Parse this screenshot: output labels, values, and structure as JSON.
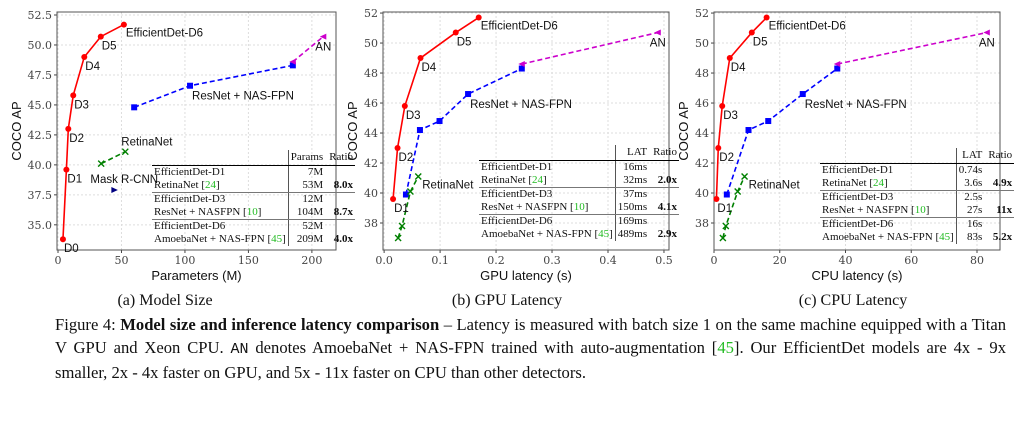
{
  "colors": {
    "efficientdet": "#ff0000",
    "resnet_nasfpn": "#0000ff",
    "amoebanet": "#cc00cc",
    "retinanet": "#008000",
    "mask_rcnn": "#000080",
    "citation": "#22bb22"
  },
  "chart_data": [
    {
      "type": "line",
      "xlabel": "Parameters (M)",
      "ylabel": "COCO AP",
      "xlim": [
        -0.8,
        219
      ],
      "ylim": [
        32.9,
        52.75
      ],
      "xticks": [
        0,
        50,
        100,
        150,
        200
      ],
      "xtick_labels": [
        "0",
        "50",
        "100",
        "150",
        "200"
      ],
      "yticks": [
        35,
        37.5,
        40,
        42.5,
        45,
        47.5,
        50,
        52.5
      ],
      "ytick_labels": [
        "35.0",
        "37.5",
        "40.0",
        "42.5",
        "45.0",
        "47.5",
        "50.0",
        "52.5"
      ],
      "grid": true,
      "series": [
        {
          "key": "efficientdet",
          "style": "solid",
          "marker": "circle",
          "points": [
            [
              3.9,
              33.8
            ],
            [
              6.6,
              39.6
            ],
            [
              8.1,
              43.0
            ],
            [
              12,
              45.8
            ],
            [
              20.7,
              49.0
            ],
            [
              33.7,
              50.7
            ],
            [
              51.9,
              51.7
            ]
          ]
        },
        {
          "key": "resnet_nasfpn",
          "style": "dashed",
          "marker": "square",
          "points": [
            [
              60,
              44.8
            ],
            [
              104,
              46.6
            ],
            [
              185,
              48.3
            ]
          ]
        },
        {
          "key": "amoebanet",
          "style": "dashed",
          "marker": "triangle-left",
          "points": [
            [
              185,
              48.6
            ],
            [
              209,
              50.7
            ]
          ]
        },
        {
          "key": "retinanet",
          "style": "dashed",
          "marker": "x",
          "points": [
            [
              34,
              40.1
            ],
            [
              53,
              41.1
            ]
          ]
        },
        {
          "key": "mask_rcnn",
          "style": "none",
          "marker": "triangle-right",
          "points": [
            [
              44.4,
              37.9
            ]
          ]
        }
      ],
      "annotations": [
        {
          "text": "D0",
          "x": 3.9,
          "y": 33.8
        },
        {
          "text": "D1",
          "x": 6.6,
          "y": 39.6
        },
        {
          "text": "D2",
          "x": 8.1,
          "y": 43.0
        },
        {
          "text": "D3",
          "x": 12,
          "y": 45.8
        },
        {
          "text": "D4",
          "x": 20.7,
          "y": 49.0
        },
        {
          "text": "D5",
          "x": 33.7,
          "y": 50.7
        },
        {
          "text": "EfficientDet-D6",
          "x": 51.9,
          "y": 51.7
        },
        {
          "text": "ResNet + NAS-FPN",
          "x": 104,
          "y": 46.6
        },
        {
          "text": "AN",
          "x": 209,
          "y": 50.7
        },
        {
          "text": "RetinaNet",
          "x": 53,
          "y": 41.1
        },
        {
          "text": "Mask R-CNN",
          "x": 44.4,
          "y": 37.9
        }
      ],
      "table": {
        "headers": [
          "",
          "Params",
          "Ratio"
        ],
        "rows": [
          [
            {
              "name": "EfficientDet-D1",
              "ref": ""
            },
            "7M",
            ""
          ],
          [
            {
              "name": "RetinaNet",
              "ref": "24"
            },
            "53M",
            "8.0x"
          ],
          [
            {
              "name": "EfficientDet-D3",
              "ref": ""
            },
            "12M",
            ""
          ],
          [
            {
              "name": "ResNet + NASFPN",
              "ref": "10"
            },
            "104M",
            "8.7x"
          ],
          [
            {
              "name": "EfficientDet-D6",
              "ref": ""
            },
            "52M",
            ""
          ],
          [
            {
              "name": "AmoebaNet + NAS-FPN",
              "ref": "45"
            },
            "209M",
            "4.0x"
          ]
        ]
      }
    },
    {
      "type": "line",
      "xlabel": "GPU latency (s)",
      "ylabel": "COCO AP",
      "xlim": [
        -0.002,
        0.509
      ],
      "ylim": [
        36.2,
        52.07
      ],
      "xticks": [
        0,
        0.1,
        0.2,
        0.3,
        0.4,
        0.5
      ],
      "xtick_labels": [
        "0.0",
        "0.1",
        "0.2",
        "0.3",
        "0.4",
        "0.5"
      ],
      "yticks": [
        38,
        40,
        42,
        44,
        46,
        48,
        50,
        52
      ],
      "ytick_labels": [
        "38",
        "40",
        "42",
        "44",
        "46",
        "48",
        "50",
        "52"
      ],
      "grid": true,
      "series": [
        {
          "key": "efficientdet",
          "style": "solid",
          "marker": "circle",
          "points": [
            [
              0.016,
              39.6
            ],
            [
              0.024,
              43.0
            ],
            [
              0.037,
              45.8
            ],
            [
              0.065,
              49.0
            ],
            [
              0.128,
              50.7
            ],
            [
              0.169,
              51.7
            ]
          ]
        },
        {
          "key": "resnet_nasfpn",
          "style": "dashed",
          "marker": "square",
          "points": [
            [
              0.039,
              39.9
            ],
            [
              0.064,
              44.2
            ],
            [
              0.099,
              44.8
            ],
            [
              0.15,
              46.6
            ],
            [
              0.246,
              48.3
            ]
          ]
        },
        {
          "key": "amoebanet",
          "style": "dashed",
          "marker": "triangle-left",
          "points": [
            [
              0.246,
              48.6
            ],
            [
              0.489,
              50.7
            ]
          ]
        },
        {
          "key": "retinanet",
          "style": "dashed",
          "marker": "x",
          "points": [
            [
              0.025,
              37.0
            ],
            [
              0.032,
              37.8
            ],
            [
              0.047,
              40.1
            ],
            [
              0.061,
              41.1
            ]
          ]
        }
      ],
      "annotations": [
        {
          "text": "D1",
          "x": 0.016,
          "y": 39.6
        },
        {
          "text": "D2",
          "x": 0.024,
          "y": 43.0
        },
        {
          "text": "D3",
          "x": 0.037,
          "y": 45.8
        },
        {
          "text": "D4",
          "x": 0.065,
          "y": 49.0
        },
        {
          "text": "D5",
          "x": 0.128,
          "y": 50.7
        },
        {
          "text": "EfficientDet-D6",
          "x": 0.169,
          "y": 51.7
        },
        {
          "text": "ResNet + NAS-FPN",
          "x": 0.15,
          "y": 46.6
        },
        {
          "text": "AN",
          "x": 0.489,
          "y": 50.7
        },
        {
          "text": "RetinaNet",
          "x": 0.061,
          "y": 41.1
        }
      ],
      "table": {
        "headers": [
          "",
          "LAT",
          "Ratio"
        ],
        "rows": [
          [
            {
              "name": "EfficientDet-D1",
              "ref": ""
            },
            "16ms",
            ""
          ],
          [
            {
              "name": "RetinaNet",
              "ref": "24"
            },
            "32ms",
            "2.0x"
          ],
          [
            {
              "name": "EfficientDet-D3",
              "ref": ""
            },
            "37ms",
            ""
          ],
          [
            {
              "name": "ResNet + NASFPN",
              "ref": "10"
            },
            "150ms",
            "4.1x"
          ],
          [
            {
              "name": "EfficientDet-D6",
              "ref": ""
            },
            "169ms",
            ""
          ],
          [
            {
              "name": "AmoebaNet + NAS-FPN",
              "ref": "45"
            },
            "489ms",
            "2.9x"
          ]
        ]
      }
    },
    {
      "type": "line",
      "xlabel": "CPU latency (s)",
      "ylabel": "COCO AP",
      "xlim": [
        0,
        87
      ],
      "ylim": [
        36.2,
        52.07
      ],
      "xticks": [
        0,
        20,
        40,
        60,
        80
      ],
      "xtick_labels": [
        "0",
        "20",
        "40",
        "60",
        "80"
      ],
      "yticks": [
        38,
        40,
        42,
        44,
        46,
        48,
        50,
        52
      ],
      "ytick_labels": [
        "38",
        "40",
        "42",
        "44",
        "46",
        "48",
        "50",
        "52"
      ],
      "grid": true,
      "series": [
        {
          "key": "efficientdet",
          "style": "solid",
          "marker": "circle",
          "points": [
            [
              0.74,
              39.6
            ],
            [
              1.3,
              43.0
            ],
            [
              2.5,
              45.8
            ],
            [
              4.8,
              49.0
            ],
            [
              11.5,
              50.7
            ],
            [
              16,
              51.7
            ]
          ]
        },
        {
          "key": "resnet_nasfpn",
          "style": "dashed",
          "marker": "square",
          "points": [
            [
              3.9,
              39.9
            ],
            [
              10.5,
              44.2
            ],
            [
              16.5,
              44.8
            ],
            [
              27,
              46.6
            ],
            [
              37.5,
              48.3
            ]
          ]
        },
        {
          "key": "amoebanet",
          "style": "dashed",
          "marker": "triangle-left",
          "points": [
            [
              37.5,
              48.6
            ],
            [
              83,
              50.7
            ]
          ]
        },
        {
          "key": "retinanet",
          "style": "dashed",
          "marker": "x",
          "points": [
            [
              2.7,
              37.0
            ],
            [
              3.6,
              37.8
            ],
            [
              7.2,
              40.1
            ],
            [
              9.3,
              41.1
            ]
          ]
        }
      ],
      "annotations": [
        {
          "text": "D1",
          "x": 0.74,
          "y": 39.6
        },
        {
          "text": "D2",
          "x": 1.3,
          "y": 43.0
        },
        {
          "text": "D3",
          "x": 2.5,
          "y": 45.8
        },
        {
          "text": "D4",
          "x": 4.8,
          "y": 49.0
        },
        {
          "text": "D5",
          "x": 11.5,
          "y": 50.7
        },
        {
          "text": "EfficientDet-D6",
          "x": 16,
          "y": 51.7
        },
        {
          "text": "ResNet + NAS-FPN",
          "x": 27,
          "y": 46.6
        },
        {
          "text": "AN",
          "x": 83,
          "y": 50.7
        },
        {
          "text": "RetinaNet",
          "x": 9.3,
          "y": 41.1
        }
      ],
      "table": {
        "headers": [
          "",
          "LAT",
          "Ratio"
        ],
        "rows": [
          [
            {
              "name": "EfficientDet-D1",
              "ref": ""
            },
            "0.74s",
            ""
          ],
          [
            {
              "name": "RetinaNet",
              "ref": "24"
            },
            "3.6s",
            "4.9x"
          ],
          [
            {
              "name": "EfficientDet-D3",
              "ref": ""
            },
            "2.5s",
            ""
          ],
          [
            {
              "name": "ResNet + NASFPN",
              "ref": "10"
            },
            "27s",
            "11x"
          ],
          [
            {
              "name": "EfficientDet-D6",
              "ref": ""
            },
            "16s",
            ""
          ],
          [
            {
              "name": "AmoebaNet + NAS-FPN",
              "ref": "45"
            },
            "83s",
            "5.2x"
          ]
        ]
      }
    }
  ],
  "subcaptions": [
    "(a) Model Size",
    "(b) GPU Latency",
    "(c) CPU Latency"
  ],
  "caption": {
    "label": "Figure 4:",
    "title": "Model size and inference latency comparison",
    "text1": " – Latency is measured with batch size 1 on the same machine equipped with a Titan V GPU and Xeon CPU. ",
    "an": "AN",
    "text2": " denotes AmoebaNet + NAS-FPN trained with auto-augmentation [",
    "ref": "45",
    "text3": "]. Our EfficientDet models are 4x - 9x smaller, 2x - 4x faster on GPU, and 5x - 11x faster on CPU than other detectors."
  }
}
